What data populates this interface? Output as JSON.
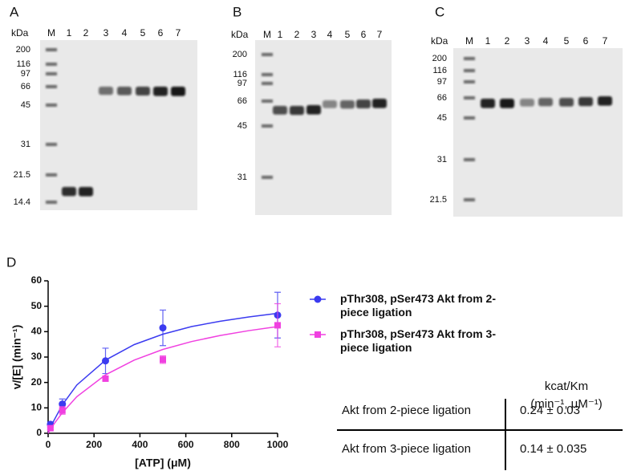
{
  "panels": [
    {
      "letter": "A",
      "unit": "kDa",
      "lanes": [
        "M",
        "1",
        "2",
        "3",
        "4",
        "5",
        "6",
        "7"
      ],
      "markers": [
        200,
        116,
        97,
        66,
        45,
        31,
        21.5,
        14.4
      ]
    },
    {
      "letter": "B",
      "unit": "kDa",
      "lanes": [
        "M",
        "1",
        "2",
        "3",
        "4",
        "5",
        "6",
        "7"
      ],
      "markers": [
        200,
        116,
        97,
        66,
        45,
        31
      ]
    },
    {
      "letter": "C",
      "unit": "kDa",
      "lanes": [
        "M",
        "1",
        "2",
        "3",
        "4",
        "5",
        "6",
        "7"
      ],
      "markers": [
        200,
        116,
        97,
        66,
        45,
        31,
        21.5
      ]
    }
  ],
  "chart_data": {
    "type": "scatter",
    "letter": "D",
    "x_label": "[ATP] (μM)",
    "y_label": "v/[E] (min⁻¹)",
    "xlim": [
      0,
      1000
    ],
    "ylim": [
      0,
      60
    ],
    "xticks": [
      0,
      200,
      400,
      600,
      800,
      1000
    ],
    "yticks": [
      0,
      10,
      20,
      30,
      40,
      50,
      60
    ],
    "series": [
      {
        "name": "pThr308, pSer473 Akt from 2-piece ligation",
        "color": "#3b3bf0",
        "marker": "circle",
        "x": [
          10,
          62,
          250,
          500,
          1000
        ],
        "values": [
          3.5,
          11.5,
          28.5,
          41.5,
          46.5
        ],
        "errors": [
          1,
          2,
          5,
          7,
          9
        ],
        "fit": {
          "x": [
            0,
            25,
            62,
            125,
            250,
            375,
            500,
            625,
            750,
            875,
            1000
          ],
          "values": [
            0,
            5,
            11.2,
            19,
            28.8,
            34.9,
            39,
            42,
            44.1,
            45.8,
            47.2
          ]
        }
      },
      {
        "name": "pThr308, pSer473 Akt from 3-piece ligation",
        "color": "#f040e0",
        "marker": "square",
        "x": [
          10,
          62,
          250,
          500,
          1000
        ],
        "values": [
          2,
          9,
          21.5,
          29,
          42.5
        ],
        "errors": [
          0.5,
          1.5,
          1,
          1.5,
          8.5
        ],
        "fit": {
          "x": [
            0,
            25,
            62,
            125,
            250,
            375,
            500,
            625,
            750,
            875,
            1000
          ],
          "values": [
            0,
            3.6,
            8.1,
            14.4,
            23,
            28.8,
            33,
            36.1,
            38.5,
            40.4,
            42
          ]
        }
      }
    ]
  },
  "table": {
    "header": [
      "kcat/Km",
      "(min⁻¹, μM⁻¹)"
    ],
    "rows": [
      [
        "Akt from 2-piece ligation",
        "0.24 ± 0.03"
      ],
      [
        "Akt from 3-piece ligation",
        "0.14 ± 0.035"
      ]
    ]
  }
}
